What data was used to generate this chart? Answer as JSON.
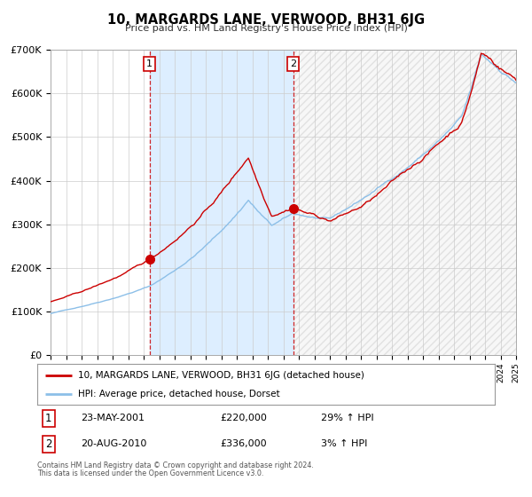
{
  "title": "10, MARGARDS LANE, VERWOOD, BH31 6JG",
  "subtitle": "Price paid vs. HM Land Registry's House Price Index (HPI)",
  "legend_line1": "10, MARGARDS LANE, VERWOOD, BH31 6JG (detached house)",
  "legend_line2": "HPI: Average price, detached house, Dorset",
  "transaction1_date": "23-MAY-2001",
  "transaction1_price": "£220,000",
  "transaction1_hpi": "29% ↑ HPI",
  "transaction2_date": "20-AUG-2010",
  "transaction2_price": "£336,000",
  "transaction2_hpi": "3% ↑ HPI",
  "footer1": "Contains HM Land Registry data © Crown copyright and database right 2024.",
  "footer2": "This data is licensed under the Open Government Licence v3.0.",
  "hpi_color": "#8cbfe8",
  "price_color": "#cc0000",
  "marker_color": "#cc0000",
  "dashed_line_color": "#cc0000",
  "background_color": "#ffffff",
  "plot_bg_color": "#ffffff",
  "shaded_region_color": "#ddeeff",
  "ylim": [
    0,
    700000
  ],
  "yticks": [
    0,
    100000,
    200000,
    300000,
    400000,
    500000,
    600000,
    700000
  ],
  "transaction1_x": 2001.38,
  "transaction1_y": 220000,
  "transaction2_x": 2010.63,
  "transaction2_y": 336000,
  "xmin": 1995,
  "xmax": 2025
}
